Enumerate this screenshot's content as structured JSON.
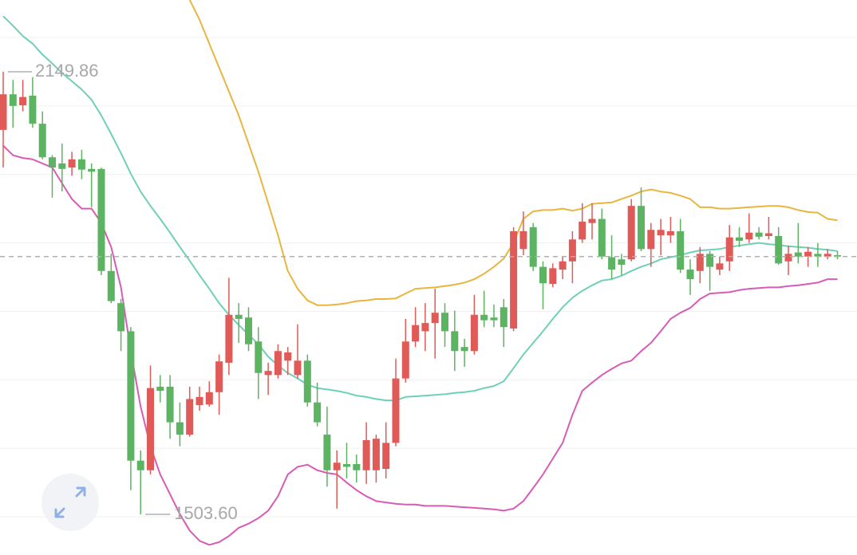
{
  "chart_data": {
    "type": "candlestick",
    "up_color": "#e05a57",
    "down_color": "#5cb463",
    "ylim": [
      1444.24,
      2254.66
    ],
    "gridlines": [
      2200,
      2100,
      2000,
      1900,
      1800,
      1700,
      1600,
      1500
    ],
    "max_marker": {
      "value": 2149.86,
      "label": "2149.86"
    },
    "min_marker": {
      "value": 1503.6,
      "label": "1503.60"
    },
    "last_price_color": "#b0b0b0",
    "open": [
      2065,
      2117,
      2101,
      2115,
      2074,
      2025,
      2016,
      2010,
      2022,
      2008,
      2008,
      1859,
      1812,
      1771,
      1582,
      1568,
      1690,
      1690,
      1638,
      1620,
      1663,
      1664,
      1682,
      1725,
      1795,
      1791,
      1756,
      1707,
      1707,
      1728,
      1707,
      1728,
      1667,
      1620,
      1568,
      1577,
      1577,
      1568,
      1568,
      1570,
      1608,
      1702,
      1756,
      1771,
      1783,
      1798,
      1771,
      1748,
      1742,
      1795,
      1791,
      1806,
      1775,
      1891,
      1923,
      1865,
      1840,
      1861,
      1873,
      1905,
      1929,
      1935,
      1879,
      1876,
      1876,
      1954,
      1891,
      1911,
      1911,
      1917,
      1861,
      1859,
      1884,
      1861,
      1873,
      1908,
      1905,
      1915,
      1910,
      1910,
      1873,
      1886,
      1880,
      1884,
      1880,
      1882
    ],
    "high": [
      2149.86,
      2138,
      2138,
      2142,
      2092,
      2028,
      2045,
      2033,
      2036,
      2016,
      2010,
      1884,
      1818,
      1777,
      1597,
      1721,
      1707,
      1707,
      1667,
      1690,
      1690,
      1698,
      1737,
      1849,
      1812,
      1806,
      1777,
      1725,
      1752,
      1748,
      1781,
      1737,
      1696,
      1661,
      1597,
      1608,
      1591,
      1638,
      1620,
      1638,
      1731,
      1789,
      1806,
      1812,
      1833,
      1812,
      1801,
      1760,
      1824,
      1830,
      1810,
      1818,
      1923,
      1946,
      1929,
      1873,
      1870,
      1880,
      1917,
      1958,
      1958,
      1950,
      1911,
      1884,
      1964,
      1981,
      1929,
      1935,
      1938,
      1935,
      1876,
      1894,
      1888,
      1880,
      1926,
      1923,
      1943,
      1923,
      1938,
      1923,
      1896,
      1929,
      1894,
      1900,
      1891,
      1888
    ],
    "low": [
      2010,
      2068,
      2092,
      2068,
      2022,
      1966,
      1975,
      1998,
      1993,
      1952,
      1853,
      1812,
      1742,
      1539,
      1503.6,
      1562,
      1667,
      1614,
      1603,
      1617,
      1655,
      1661,
      1649,
      1707,
      1754,
      1742,
      1672,
      1678,
      1702,
      1707,
      1702,
      1661,
      1632,
      1544,
      1512,
      1556,
      1550,
      1548,
      1550,
      1556,
      1603,
      1696,
      1748,
      1742,
      1731,
      1748,
      1713,
      1719,
      1737,
      1777,
      1777,
      1748,
      1771,
      1882,
      1859,
      1803,
      1835,
      1847,
      1841,
      1900,
      1905,
      1876,
      1847,
      1853,
      1873,
      1888,
      1865,
      1882,
      1900,
      1856,
      1824,
      1841,
      1830,
      1853,
      1859,
      1894,
      1900,
      1905,
      1905,
      1868,
      1853,
      1870,
      1865,
      1865,
      1876,
      1876
    ],
    "close": [
      2117,
      2100,
      2113,
      2074,
      2025,
      2010,
      2008,
      2022,
      2007,
      2004,
      1859,
      1815,
      1771,
      1582,
      1568,
      1688,
      1684,
      1638,
      1620,
      1672,
      1675,
      1682,
      1727,
      1795,
      1789,
      1752,
      1710,
      1713,
      1742,
      1740,
      1728,
      1667,
      1638,
      1568,
      1579,
      1573,
      1568,
      1612,
      1614,
      1608,
      1702,
      1756,
      1780,
      1783,
      1798,
      1771,
      1742,
      1742,
      1795,
      1787,
      1787,
      1777,
      1917,
      1917,
      1865,
      1841,
      1863,
      1873,
      1905,
      1931,
      1935,
      1880,
      1861,
      1868,
      1954,
      1891,
      1919,
      1919,
      1917,
      1861,
      1847,
      1884,
      1865,
      1870,
      1908,
      1903,
      1915,
      1909,
      1914,
      1870,
      1884,
      1880,
      1887,
      1880,
      1884,
      1880
    ],
    "lines": [
      {
        "color": "#e8b640",
        "values": [
          null,
          null,
          null,
          null,
          null,
          null,
          null,
          null,
          null,
          null,
          null,
          null,
          null,
          null,
          null,
          null,
          null,
          null,
          null,
          2255,
          2226,
          2191,
          2156,
          2121,
          2086,
          2045,
          2004,
          1958,
          1911,
          1859,
          1833,
          1816,
          1809,
          1809,
          1810,
          1812,
          1815,
          1816,
          1818,
          1818,
          1819,
          1826,
          1833,
          1834,
          1835,
          1837,
          1839,
          1842,
          1847,
          1855,
          1865,
          1877,
          1900,
          1935,
          1946,
          1948,
          1948,
          1950,
          1947,
          1950,
          1957,
          1958,
          1959,
          1964,
          1969,
          1975,
          1978,
          1975,
          1973,
          1969,
          1964,
          1952,
          1952,
          1950,
          1950,
          1951,
          1952,
          1953,
          1954,
          1954,
          1952,
          1948,
          1945,
          1944,
          1935,
          1933
        ]
      },
      {
        "color": "#6fd0b8",
        "values": [
          2231,
          2217,
          2202,
          2191,
          2175,
          2162,
          2148,
          2136,
          2124,
          2109,
          2086,
          2059,
          2031,
          2001,
          1975,
          1954,
          1935,
          1915,
          1894,
          1874,
          1853,
          1833,
          1812,
          1795,
          1780,
          1766,
          1752,
          1734,
          1721,
          1710,
          1702,
          1693,
          1688,
          1686,
          1684,
          1681,
          1677,
          1675,
          1672,
          1670,
          1670,
          1675,
          1676,
          1677,
          1678,
          1679,
          1681,
          1682,
          1684,
          1688,
          1691,
          1698,
          1717,
          1737,
          1754,
          1771,
          1789,
          1806,
          1820,
          1830,
          1838,
          1845,
          1847,
          1852,
          1859,
          1865,
          1870,
          1876,
          1879,
          1882,
          1886,
          1889,
          1890,
          1891,
          1894,
          1896,
          1898,
          1900,
          1898,
          1897,
          1895,
          1894,
          1893,
          1891,
          1890,
          1888
        ]
      },
      {
        "color": "#d65cb6",
        "values": [
          2042,
          2028,
          2024,
          2022,
          2016,
          2010,
          1987,
          1964,
          1950,
          1950,
          1929,
          1894,
          1835,
          1742,
          1661,
          1603,
          1562,
          1533,
          1504,
          1480,
          1465,
          1459,
          1463,
          1472,
          1484,
          1490,
          1498,
          1509,
          1530,
          1562,
          1573,
          1576,
          1568,
          1564,
          1562,
          1550,
          1539,
          1530,
          1523,
          1521,
          1519,
          1518,
          1518,
          1516,
          1516,
          1516,
          1515,
          1514,
          1513,
          1512,
          1511,
          1509,
          1512,
          1523,
          1542,
          1562,
          1585,
          1608,
          1649,
          1684,
          1696,
          1707,
          1716,
          1724,
          1728,
          1742,
          1754,
          1771,
          1789,
          1798,
          1805,
          1818,
          1826,
          1827,
          1828,
          1831,
          1833,
          1834,
          1835,
          1835,
          1837,
          1838,
          1840,
          1842,
          1847,
          1847
        ]
      }
    ]
  }
}
